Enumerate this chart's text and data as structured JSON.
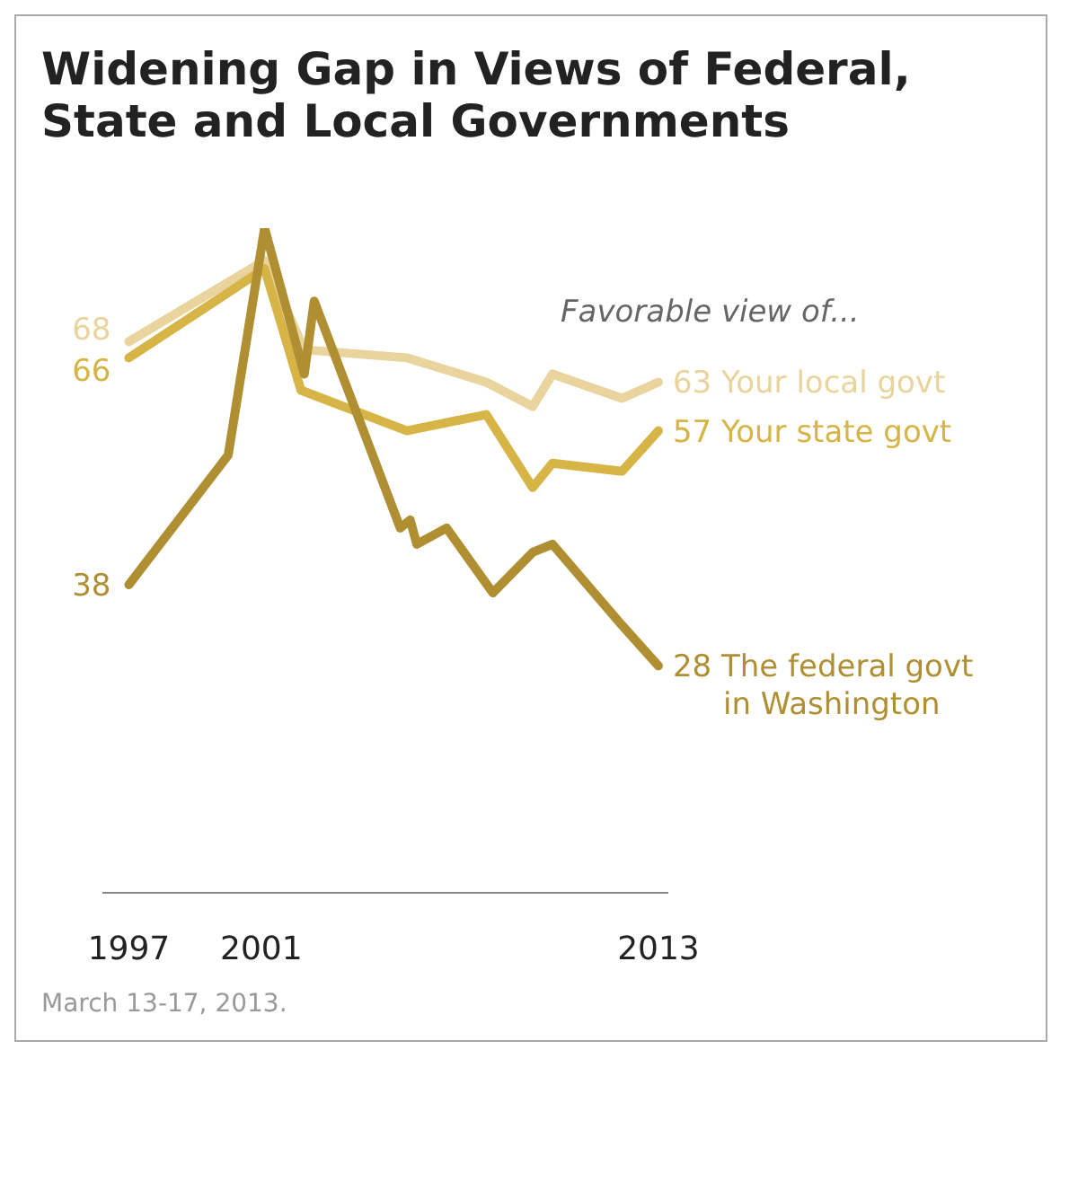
{
  "chart_data": {
    "type": "line",
    "title": "Widening Gap in Views of Federal, State and Local Governments",
    "legend_title": "Favorable view of...",
    "xlim": [
      1996.2,
      2013.3
    ],
    "xticks": [
      1997,
      2001,
      2013
    ],
    "tick_labels": "x",
    "line_style": "solid",
    "series": [
      {
        "name": "Your local govt",
        "color": "#e8d49c",
        "x": [
          1997,
          2001.1,
          2002.3,
          2005.4,
          2007.8,
          2009.2,
          2009.8,
          2011.9,
          2013
        ],
        "values": [
          68,
          78,
          67,
          66,
          63,
          60,
          64,
          61,
          63
        ],
        "value_labels": [
          "68",
          null,
          null,
          null,
          null,
          null,
          null,
          null,
          "63"
        ]
      },
      {
        "name": "Your state govt",
        "color": "#d6b446",
        "x": [
          1997,
          2001.1,
          2002.2,
          2005.4,
          2007.8,
          2009.2,
          2009.8,
          2011.9,
          2013
        ],
        "values": [
          66,
          77,
          62,
          57,
          59,
          50,
          53,
          52,
          57
        ],
        "value_labels": [
          "66",
          null,
          null,
          null,
          null,
          null,
          null,
          null,
          "57"
        ]
      },
      {
        "name": "The federal govt in Washington",
        "color": "#b08f32",
        "x": [
          1997,
          2000,
          2001.1,
          2002.3,
          2002.6,
          2005.2,
          2005.5,
          2005.7,
          2006.6,
          2008,
          2009.2,
          2009.8,
          2011.9,
          2013
        ],
        "values": [
          38,
          54,
          82,
          64,
          73,
          45,
          46,
          43,
          45,
          37,
          42,
          43,
          33,
          28
        ],
        "value_labels": [
          "38",
          null,
          null,
          null,
          null,
          null,
          null,
          null,
          null,
          null,
          null,
          null,
          null,
          "28"
        ]
      }
    ],
    "annotations": [
      "March 13-17, 2013."
    ]
  }
}
